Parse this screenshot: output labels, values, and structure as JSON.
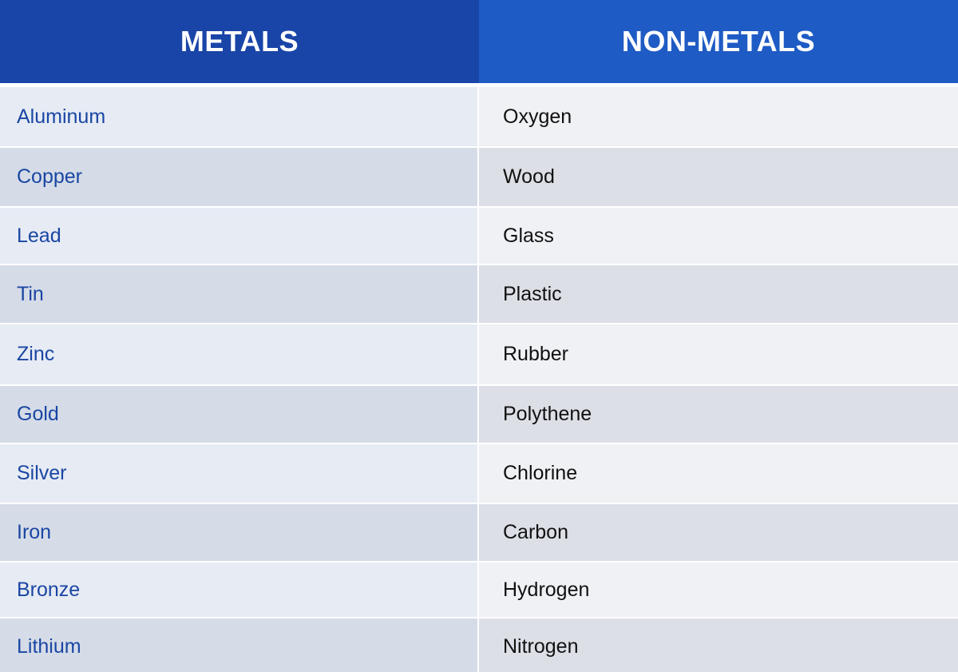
{
  "header": {
    "metals_label": "METALS",
    "nonmetals_label": "NON-METALS"
  },
  "rows": [
    {
      "metal": "Aluminum",
      "nonmetal": "Oxygen"
    },
    {
      "metal": "Copper",
      "nonmetal": "Wood"
    },
    {
      "metal": "Lead",
      "nonmetal": "Glass"
    },
    {
      "metal": "Tin",
      "nonmetal": "Plastic"
    },
    {
      "metal": "Zinc",
      "nonmetal": "Rubber"
    },
    {
      "metal": "Gold",
      "nonmetal": "Polythene"
    },
    {
      "metal": "Silver",
      "nonmetal": "Chlorine"
    },
    {
      "metal": "Iron",
      "nonmetal": "Carbon"
    },
    {
      "metal": "Bronze",
      "nonmetal": "Hydrogen"
    },
    {
      "metal": "Lithium",
      "nonmetal": "Nitrogen"
    }
  ],
  "colors": {
    "header_left": "#1a45a8",
    "header_right": "#1f5bc4",
    "metal_text": "#1a46a3",
    "nonmetal_text": "#111111"
  }
}
